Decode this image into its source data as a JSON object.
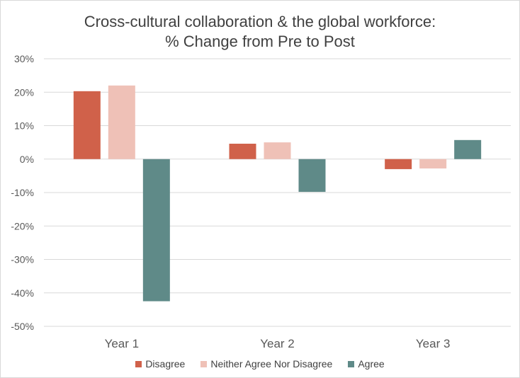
{
  "chart_data": {
    "type": "bar",
    "title_line1": "Cross-cultural collaboration & the global workforce:",
    "title_line2": "% Change from Pre to Post",
    "categories": [
      "Year 1",
      "Year 2",
      "Year 3"
    ],
    "series": [
      {
        "name": "Disagree",
        "color": "#D0614A",
        "values": [
          20.3,
          4.6,
          -3.0
        ]
      },
      {
        "name": "Neither Agree Nor Disagree",
        "color": "#EFC1B7",
        "values": [
          22.0,
          5.0,
          -2.8
        ]
      },
      {
        "name": "Agree",
        "color": "#5F8A88",
        "values": [
          -42.5,
          -9.8,
          5.7
        ]
      }
    ],
    "ylim": [
      -50,
      30
    ],
    "yticks": [
      30,
      20,
      10,
      0,
      -10,
      -20,
      -30,
      -40,
      -50
    ],
    "ytick_labels": [
      "30%",
      "20%",
      "10%",
      "0%",
      "-10%",
      "-20%",
      "-30%",
      "-40%",
      "-50%"
    ],
    "grid": true,
    "legend_position": "bottom"
  }
}
